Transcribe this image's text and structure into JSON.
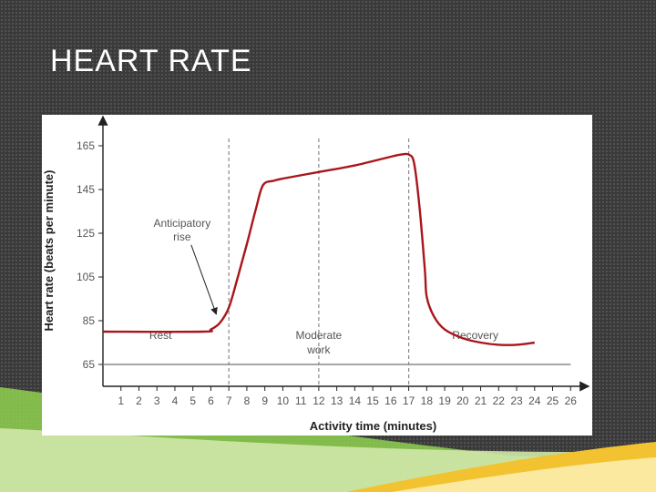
{
  "slide": {
    "title": "HEART RATE"
  },
  "colors": {
    "background": "#3a3a3a",
    "curve": "#a8161b",
    "axis": "#222222",
    "gridline": "#8a8a8a",
    "label": "#555555",
    "accent_green": "#8fd14f",
    "accent_yellow": "#f2c230"
  },
  "chart_data": {
    "type": "line",
    "title": "",
    "xlabel": "Activity time (minutes)",
    "ylabel": "Heart rate (beats per minute)",
    "xlim": [
      0,
      27
    ],
    "ylim": [
      55,
      175
    ],
    "x_ticks": [
      "1",
      "2",
      "3",
      "4",
      "5",
      "6",
      "7",
      "8",
      "9",
      "10",
      "11",
      "12",
      "13",
      "14",
      "15",
      "16",
      "17",
      "18",
      "19",
      "20",
      "21",
      "22",
      "23",
      "24",
      "25",
      "26"
    ],
    "y_ticks": [
      65,
      85,
      105,
      125,
      145,
      165
    ],
    "baseline_value": 65,
    "phase_dividers": [
      7,
      12,
      17
    ],
    "phases": [
      {
        "label_lines": [
          "Rest"
        ],
        "x": 3.2
      },
      {
        "label_lines": [
          "Moderate",
          "work"
        ],
        "x": 12
      },
      {
        "label_lines": [
          "Recovery"
        ],
        "x": 20.7
      }
    ],
    "annotation": {
      "label_lines": [
        "Anticipatory",
        "rise"
      ],
      "text_x": 4.4,
      "text_y": 128,
      "arrow_to": [
        6.3,
        88
      ]
    },
    "series": [
      {
        "name": "Heart rate",
        "x": [
          0,
          5.5,
          6.0,
          6.5,
          7.0,
          7.5,
          8.0,
          8.5,
          8.9,
          9.5,
          10,
          12,
          14,
          16,
          16.6,
          17.0,
          17.3,
          17.6,
          17.9,
          18.0,
          18.4,
          19.0,
          20.0,
          21.0,
          22.0,
          23.0,
          24.0
        ],
        "y": [
          80,
          80,
          81,
          84,
          91,
          105,
          120,
          136,
          147,
          149,
          150,
          153,
          156,
          160,
          161,
          161,
          157,
          137,
          108,
          96,
          87,
          81,
          77,
          75,
          74,
          74,
          75
        ]
      }
    ]
  }
}
